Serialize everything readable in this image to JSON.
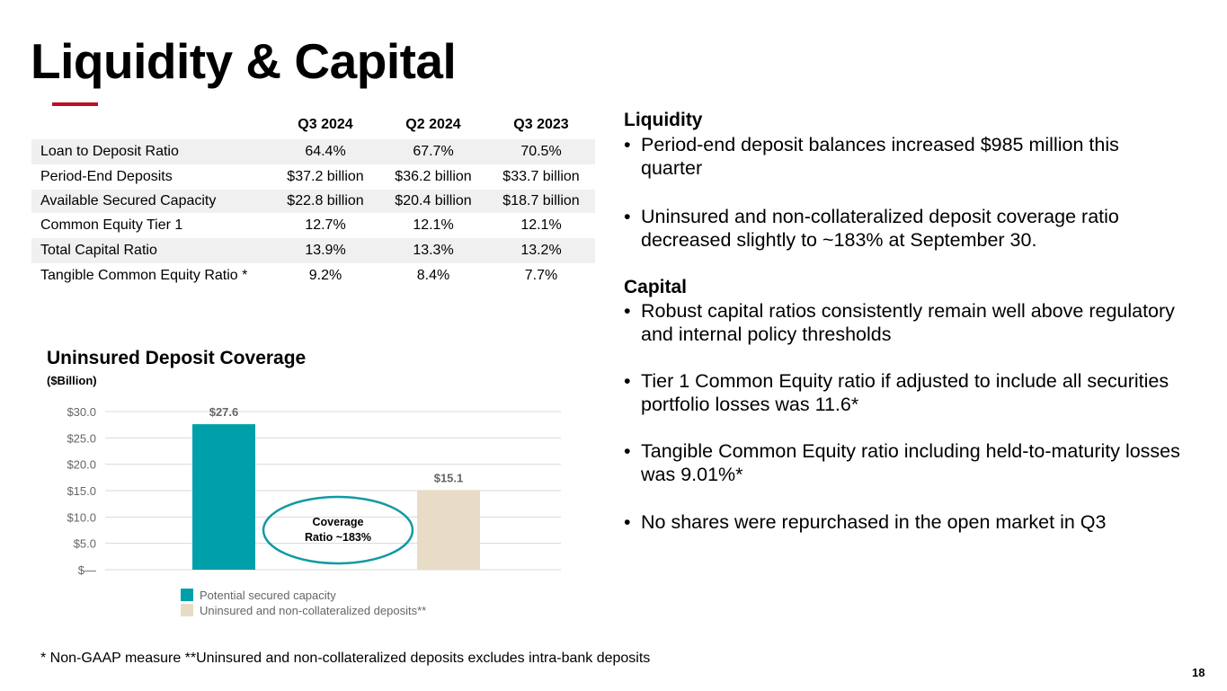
{
  "title": "Liquidity & Capital",
  "table": {
    "columns": [
      "Q3 2024",
      "Q2 2024",
      "Q3 2023"
    ],
    "rows": [
      {
        "label": "Loan to Deposit Ratio",
        "values": [
          "64.4%",
          "67.7%",
          "70.5%"
        ]
      },
      {
        "label": "Period-End Deposits",
        "values": [
          "$37.2 billion",
          "$36.2 billion",
          "$33.7 billion"
        ]
      },
      {
        "label": "Available Secured Capacity",
        "values": [
          "$22.8 billion",
          "$20.4 billion",
          "$18.7 billion"
        ]
      },
      {
        "label": "Common Equity Tier 1",
        "values": [
          "12.7%",
          "12.1%",
          "12.1%"
        ]
      },
      {
        "label": "Total Capital Ratio",
        "values": [
          "13.9%",
          "13.3%",
          "13.2%"
        ]
      },
      {
        "label": "Tangible Common Equity Ratio *",
        "values": [
          "9.2%",
          "8.4%",
          "7.7%"
        ]
      }
    ]
  },
  "liquidity": {
    "heading": "Liquidity",
    "bullets": [
      "Period-end deposit balances increased $985 million this quarter",
      "Uninsured and non-collateralized deposit coverage ratio decreased slightly to ~183% at September 30."
    ]
  },
  "capital": {
    "heading": "Capital",
    "bullets": [
      "Robust capital ratios consistently remain well above regulatory and internal policy thresholds",
      "Tier 1 Common Equity ratio if adjusted to include all securities portfolio losses was 11.6*",
      "Tangible Common Equity ratio including held-to-maturity losses was 9.01%*",
      "No shares were repurchased in the open market in Q3"
    ]
  },
  "bullet_char": "•",
  "chart_data": {
    "type": "bar",
    "title": "Uninsured Deposit Coverage",
    "unit": "($Billion)",
    "ylim": [
      0,
      30
    ],
    "yticks": [
      0,
      5,
      10,
      15,
      20,
      25,
      30
    ],
    "ytick_labels": [
      "$—",
      "$5.0",
      "$10.0",
      "$15.0",
      "$20.0",
      "$25.0",
      "$30.0"
    ],
    "series": [
      {
        "name": "Potential secured capacity",
        "value": 27.6,
        "label": "$27.6",
        "color": "#00a0ab"
      },
      {
        "name": "Uninsured and non-collateralized deposits**",
        "value": 15.1,
        "label": "$15.1",
        "color": "#e8dcc7"
      }
    ],
    "annotation": [
      "Coverage",
      "Ratio ~183%"
    ],
    "annotation_color": "#109aa3",
    "grid": true,
    "legend": "bottom-left"
  },
  "colors": {
    "accent": "#c00d26",
    "shade": "#f0f0f0",
    "axis_text": "#666666"
  },
  "footnote": "*   Non-GAAP measure  **Uninsured and non-collateralized deposits excludes intra-bank deposits",
  "page_number": "18"
}
